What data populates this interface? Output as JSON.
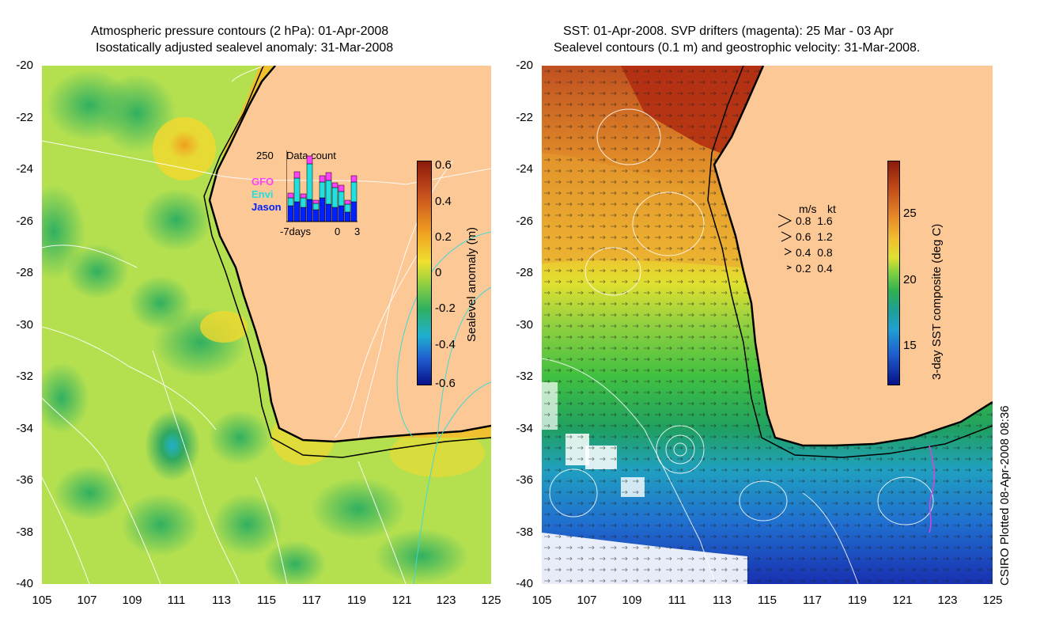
{
  "left_panel": {
    "title_line1": "Atmospheric pressure contours (2 hPa): 01-Apr-2008",
    "title_line2": "Isostatically adjusted sealevel anomaly: 31-Mar-2008",
    "y_ticks": [
      "-20",
      "-22",
      "-24",
      "-26",
      "-28",
      "-30",
      "-32",
      "-34",
      "-36",
      "-38",
      "-40"
    ],
    "x_ticks": [
      "105",
      "107",
      "109",
      "111",
      "113",
      "115",
      "117",
      "119",
      "121",
      "123",
      "125"
    ],
    "colorbar": {
      "label": "Sealevel anomaly (m)",
      "ticks": [
        "0.6",
        "0.4",
        "0.2",
        "0",
        "-0.2",
        "-0.4",
        "-0.6"
      ],
      "colors": [
        "#8b1a0a",
        "#c8501e",
        "#f0a020",
        "#f0e030",
        "#40c040",
        "#20b0d0",
        "#2060d0",
        "#08108a"
      ]
    },
    "data_count": {
      "title": "Data count",
      "max_label": "250",
      "series": [
        "GFO",
        "Envi",
        "Jason"
      ],
      "series_colors": [
        "#ff40ff",
        "#20e0e0",
        "#0020ff"
      ],
      "x_labels": [
        "-7days",
        "0",
        "3"
      ]
    }
  },
  "right_panel": {
    "title_line1": "SST: 01-Apr-2008. SVP drifters (magenta): 25 Mar - 03 Apr",
    "title_line2": "Sealevel contours (0.1 m) and geostrophic velocity: 31-Mar-2008.",
    "y_ticks": [
      "-20",
      "-22",
      "-24",
      "-26",
      "-28",
      "-30",
      "-32",
      "-34",
      "-36",
      "-38",
      "-40"
    ],
    "x_ticks": [
      "105",
      "107",
      "109",
      "111",
      "113",
      "115",
      "117",
      "119",
      "121",
      "123",
      "125"
    ],
    "colorbar": {
      "label": "3-day SST composite (deg C)",
      "ticks": [
        "25",
        "20",
        "15"
      ],
      "colors": [
        "#8b1a0a",
        "#d06020",
        "#f0b020",
        "#e0e030",
        "#80d040",
        "#20b050",
        "#20a0c0",
        "#2050d0",
        "#08108a"
      ]
    },
    "velocity_legend": {
      "headers": [
        "m/s",
        "kt"
      ],
      "rows": [
        {
          "ms": "0.8",
          "kt": "1.6"
        },
        {
          "ms": "0.6",
          "kt": "1.2"
        },
        {
          "ms": "0.4",
          "kt": "0.8"
        },
        {
          "ms": "0.2",
          "kt": "0.4"
        }
      ]
    }
  },
  "footer_credit": "CSIRO Plotted 08-Apr-2008 08:36"
}
